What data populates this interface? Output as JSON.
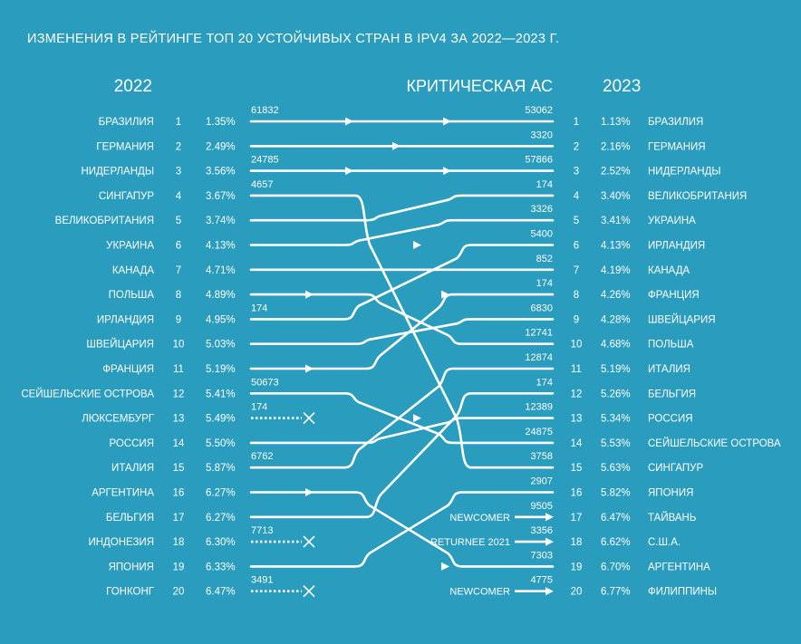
{
  "title": "ИЗМЕНЕНИЯ В РЕЙТИНГЕ ТОП 20 УСТОЙЧИВЫХ СТРАН В IPV4 ЗА 2022—2023 Г.",
  "colors": {
    "background": "#2a9cbe",
    "foreground": "#ffffff"
  },
  "chart_data": {
    "type": "table",
    "headers": {
      "left_year": "2022",
      "middle": "КРИТИЧЕСКАЯ АС",
      "right_year": "2023"
    },
    "left": [
      {
        "rank": "1",
        "country": "БРАЗИЛИЯ",
        "pct": "1.35%"
      },
      {
        "rank": "2",
        "country": "ГЕРМАНИЯ",
        "pct": "2.49%"
      },
      {
        "rank": "3",
        "country": "НИДЕРЛАНДЫ",
        "pct": "3.56%"
      },
      {
        "rank": "4",
        "country": "СИНГАПУР",
        "pct": "3.67%"
      },
      {
        "rank": "5",
        "country": "ВЕЛИКОБРИТАНИЯ",
        "pct": "3.74%"
      },
      {
        "rank": "6",
        "country": "УКРАИНА",
        "pct": "4.13%"
      },
      {
        "rank": "7",
        "country": "КАНАДА",
        "pct": "4.71%"
      },
      {
        "rank": "8",
        "country": "ПОЛЬША",
        "pct": "4.89%"
      },
      {
        "rank": "9",
        "country": "ИРЛАНДИЯ",
        "pct": "4.95%"
      },
      {
        "rank": "10",
        "country": "ШВЕЙЦАРИЯ",
        "pct": "5.03%"
      },
      {
        "rank": "11",
        "country": "ФРАНЦИЯ",
        "pct": "5.19%"
      },
      {
        "rank": "12",
        "country": "СЕЙШЕЛЬСКИЕ ОСТРОВА",
        "pct": "5.41%"
      },
      {
        "rank": "13",
        "country": "ЛЮКСЕМБУРГ",
        "pct": "5.49%"
      },
      {
        "rank": "14",
        "country": "РОССИЯ",
        "pct": "5.50%"
      },
      {
        "rank": "15",
        "country": "ИТАЛИЯ",
        "pct": "5.87%"
      },
      {
        "rank": "16",
        "country": "АРГЕНТИНА",
        "pct": "6.27%"
      },
      {
        "rank": "17",
        "country": "БЕЛЬГИЯ",
        "pct": "6.27%"
      },
      {
        "rank": "18",
        "country": "ИНДОНЕЗИЯ",
        "pct": "6.30%"
      },
      {
        "rank": "19",
        "country": "ЯПОНИЯ",
        "pct": "6.33%"
      },
      {
        "rank": "20",
        "country": "ГОНКОНГ",
        "pct": "6.47%"
      }
    ],
    "right": [
      {
        "rank": "1",
        "country": "БРАЗИЛИЯ",
        "pct": "1.13%"
      },
      {
        "rank": "2",
        "country": "ГЕРМАНИЯ",
        "pct": "2.16%"
      },
      {
        "rank": "3",
        "country": "НИДЕРЛАНДЫ",
        "pct": "2.52%"
      },
      {
        "rank": "4",
        "country": "ВЕЛИКОБРИТАНИЯ",
        "pct": "3.40%"
      },
      {
        "rank": "5",
        "country": "УКРАИНА",
        "pct": "3.41%"
      },
      {
        "rank": "6",
        "country": "ИРЛАНДИЯ",
        "pct": "4.13%"
      },
      {
        "rank": "7",
        "country": "КАНАДА",
        "pct": "4.19%"
      },
      {
        "rank": "8",
        "country": "ФРАНЦИЯ",
        "pct": "4.26%"
      },
      {
        "rank": "9",
        "country": "ШВЕЙЦАРИЯ",
        "pct": "4.28%"
      },
      {
        "rank": "10",
        "country": "ПОЛЬША",
        "pct": "4.68%"
      },
      {
        "rank": "11",
        "country": "ИТАЛИЯ",
        "pct": "5.19%"
      },
      {
        "rank": "12",
        "country": "БЕЛЬГИЯ",
        "pct": "5.26%"
      },
      {
        "rank": "13",
        "country": "РОССИЯ",
        "pct": "5.34%"
      },
      {
        "rank": "14",
        "country": "СЕЙШЕЛЬСКИЕ ОСТРОВА",
        "pct": "5.53%"
      },
      {
        "rank": "15",
        "country": "СИНГАПУР",
        "pct": "5.63%"
      },
      {
        "rank": "16",
        "country": "ЯПОНИЯ",
        "pct": "5.82%"
      },
      {
        "rank": "17",
        "country": "ТАЙВАНЬ",
        "pct": "6.47%"
      },
      {
        "rank": "18",
        "country": "С.Ш.А.",
        "pct": "6.62%"
      },
      {
        "rank": "19",
        "country": "АРГЕНТИНА",
        "pct": "6.70%"
      },
      {
        "rank": "20",
        "country": "ФИЛИППИНЫ",
        "pct": "6.77%"
      }
    ],
    "flows": [
      {
        "from": 1,
        "to": 1,
        "as_before": "61832",
        "as_after": "53062",
        "arrows": 2
      },
      {
        "from": 2,
        "to": 2,
        "as_before": "",
        "as_after": "3320",
        "arrows": 1
      },
      {
        "from": 3,
        "to": 3,
        "as_before": "24785",
        "as_after": "57866",
        "arrows": 2
      },
      {
        "from": 4,
        "to": 15,
        "as_before": "4657",
        "as_after": "3758",
        "arrows": 0
      },
      {
        "from": 5,
        "to": 4,
        "as_before": "",
        "as_after": "174",
        "arrows": 0
      },
      {
        "from": 6,
        "to": 5,
        "as_before": "",
        "as_after": "3326",
        "arrows": 0
      },
      {
        "from": 7,
        "to": 7,
        "as_before": "",
        "as_after": "852",
        "arrows": 0
      },
      {
        "from": 8,
        "to": 10,
        "as_before": "",
        "as_after": "12741",
        "arrows": 1
      },
      {
        "from": 9,
        "to": 6,
        "as_before": "174",
        "as_after": "5400",
        "arrows": 1
      },
      {
        "from": 10,
        "to": 9,
        "as_before": "",
        "as_after": "6830",
        "arrows": 0
      },
      {
        "from": 11,
        "to": 8,
        "as_before": "",
        "as_after": "174",
        "arrows": 2
      },
      {
        "from": 12,
        "to": 14,
        "as_before": "50673",
        "as_after": "24875",
        "arrows": 0
      },
      {
        "from": 13,
        "to": null,
        "as_before": "174",
        "as_after": "",
        "arrows": 0
      },
      {
        "from": 14,
        "to": 13,
        "as_before": "",
        "as_after": "12389",
        "arrows": 1
      },
      {
        "from": 15,
        "to": 11,
        "as_before": "6762",
        "as_after": "12874",
        "arrows": 0
      },
      {
        "from": 16,
        "to": 19,
        "as_before": "",
        "as_after": "7303",
        "arrows": 2
      },
      {
        "from": 17,
        "to": 12,
        "as_before": "",
        "as_after": "174",
        "arrows": 0
      },
      {
        "from": 18,
        "to": null,
        "as_before": "7713",
        "as_after": "",
        "arrows": 0
      },
      {
        "from": 19,
        "to": 16,
        "as_before": "",
        "as_after": "2907",
        "arrows": 0
      },
      {
        "from": 20,
        "to": null,
        "as_before": "3491",
        "as_after": "",
        "arrows": 0
      },
      {
        "from": null,
        "to": 17,
        "as_before": "",
        "as_after": "9505",
        "arrows": 0,
        "tag": "NEWCOMER"
      },
      {
        "from": null,
        "to": 18,
        "as_before": "",
        "as_after": "3356",
        "arrows": 0,
        "tag": "RETURNEE 2021"
      },
      {
        "from": null,
        "to": 20,
        "as_before": "",
        "as_after": "4775",
        "arrows": 0,
        "tag": "NEWCOMER"
      }
    ]
  }
}
